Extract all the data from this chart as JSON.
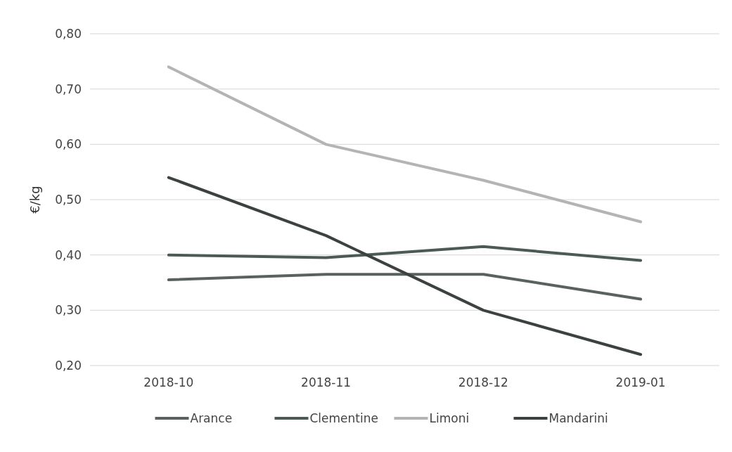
{
  "chart_data": {
    "type": "line",
    "ylabel": "€/kg",
    "categories": [
      "2018-10",
      "2018-11",
      "2018-12",
      "2019-01"
    ],
    "series": [
      {
        "name": "Arance",
        "color": "#5a625f",
        "values": [
          0.355,
          0.365,
          0.365,
          0.32
        ]
      },
      {
        "name": "Clementine",
        "color": "#4b5a55",
        "values": [
          0.4,
          0.395,
          0.415,
          0.39
        ]
      },
      {
        "name": "Limoni",
        "color": "#b4b4b4",
        "values": [
          0.74,
          0.6,
          0.535,
          0.46
        ]
      },
      {
        "name": "Mandarini",
        "color": "#3c4241",
        "values": [
          0.54,
          0.435,
          0.3,
          0.22
        ]
      }
    ],
    "ylim": [
      0.2,
      0.8
    ],
    "yticks": [
      {
        "value": 0.2,
        "label": "0,20"
      },
      {
        "value": 0.3,
        "label": "0,30"
      },
      {
        "value": 0.4,
        "label": "0,40"
      },
      {
        "value": 0.5,
        "label": "0,50"
      },
      {
        "value": 0.6,
        "label": "0,60"
      },
      {
        "value": 0.7,
        "label": "0,70"
      },
      {
        "value": 0.8,
        "label": "0,80"
      }
    ],
    "grid": "y",
    "legend": "bottom",
    "line_style": "solid"
  }
}
